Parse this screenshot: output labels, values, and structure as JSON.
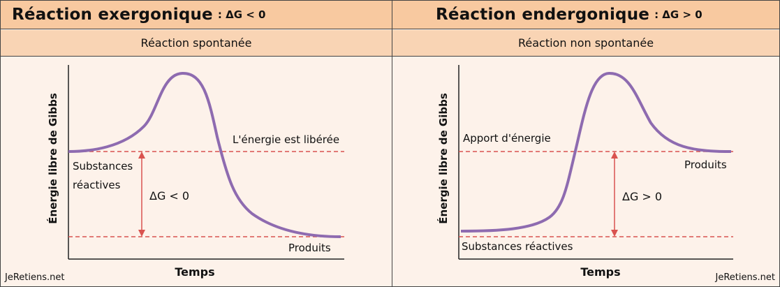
{
  "left_panel": {
    "title": "Réaction exergonique",
    "condition": ": ΔG < 0",
    "subtitle": "Réaction spontanée",
    "y_axis_label": "Énergie libre de Gibbs",
    "x_axis_label": "Temps",
    "label_reactants_1": "Substances",
    "label_reactants_2": "réactives",
    "label_energy": "L'énergie est libérée",
    "label_delta": "ΔG < 0",
    "label_products": "Produits",
    "credit": "JeRetiens.net"
  },
  "right_panel": {
    "title": "Réaction endergonique",
    "condition": ": ΔG > 0",
    "subtitle": "Réaction non spontanée",
    "y_axis_label": "Énergie libre de Gibbs",
    "x_axis_label": "Temps",
    "label_energy": "Apport d'énergie",
    "label_products": "Produits",
    "label_delta": "ΔG > 0",
    "label_reactants": "Substances réactives",
    "credit": "JeRetiens.net"
  },
  "colors": {
    "curve": "#8e6bb0",
    "dashed": "#d9534f",
    "arrow": "#d9534f"
  }
}
